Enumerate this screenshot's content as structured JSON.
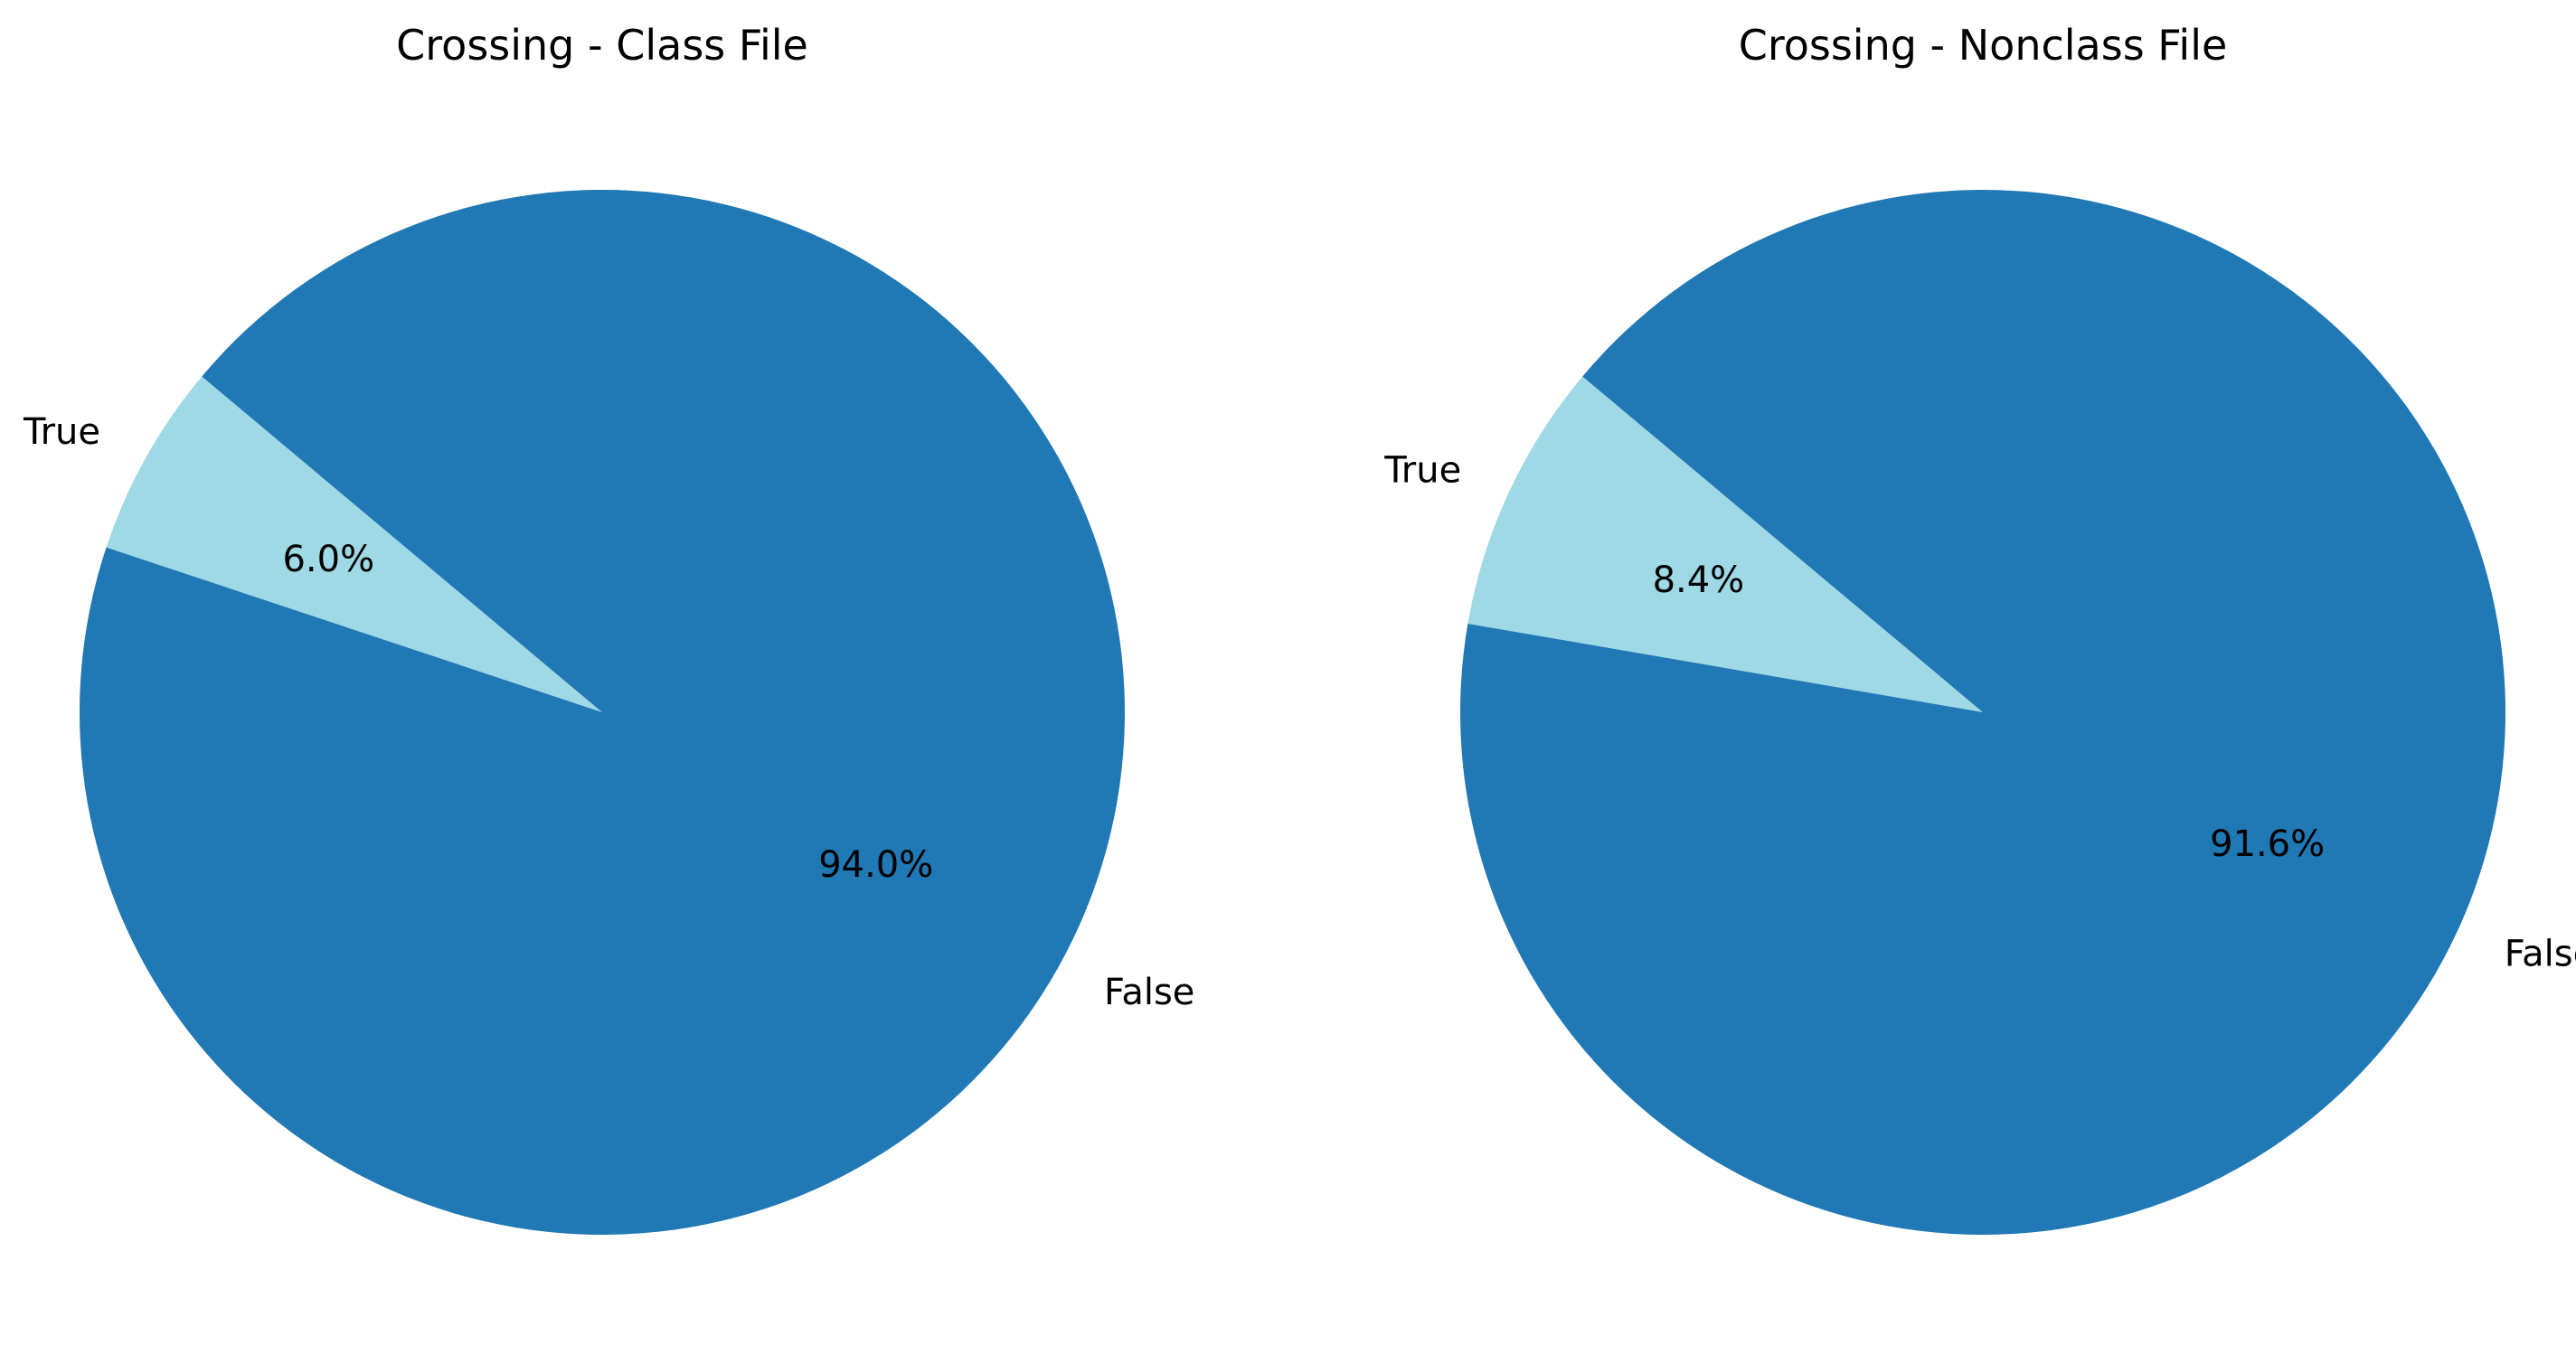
{
  "chart_data": [
    {
      "type": "pie",
      "title": "Crossing - Class File",
      "slices": [
        {
          "label": "True",
          "value": 6.0,
          "pct_label": "6.0%",
          "color": "#9ed9e5"
        },
        {
          "label": "False",
          "value": 94.0,
          "pct_label": "94.0%",
          "color": "#2078b4"
        }
      ],
      "start_angle_deg": 140,
      "direction": "counterclockwise",
      "legend": "none"
    },
    {
      "type": "pie",
      "title": "Crossing - Nonclass File",
      "slices": [
        {
          "label": "True",
          "value": 8.4,
          "pct_label": "8.4%",
          "color": "#9ed9e5"
        },
        {
          "label": "False",
          "value": 91.6,
          "pct_label": "91.6%",
          "color": "#2078b4"
        }
      ],
      "start_angle_deg": 140,
      "direction": "counterclockwise",
      "legend": "none"
    }
  ]
}
